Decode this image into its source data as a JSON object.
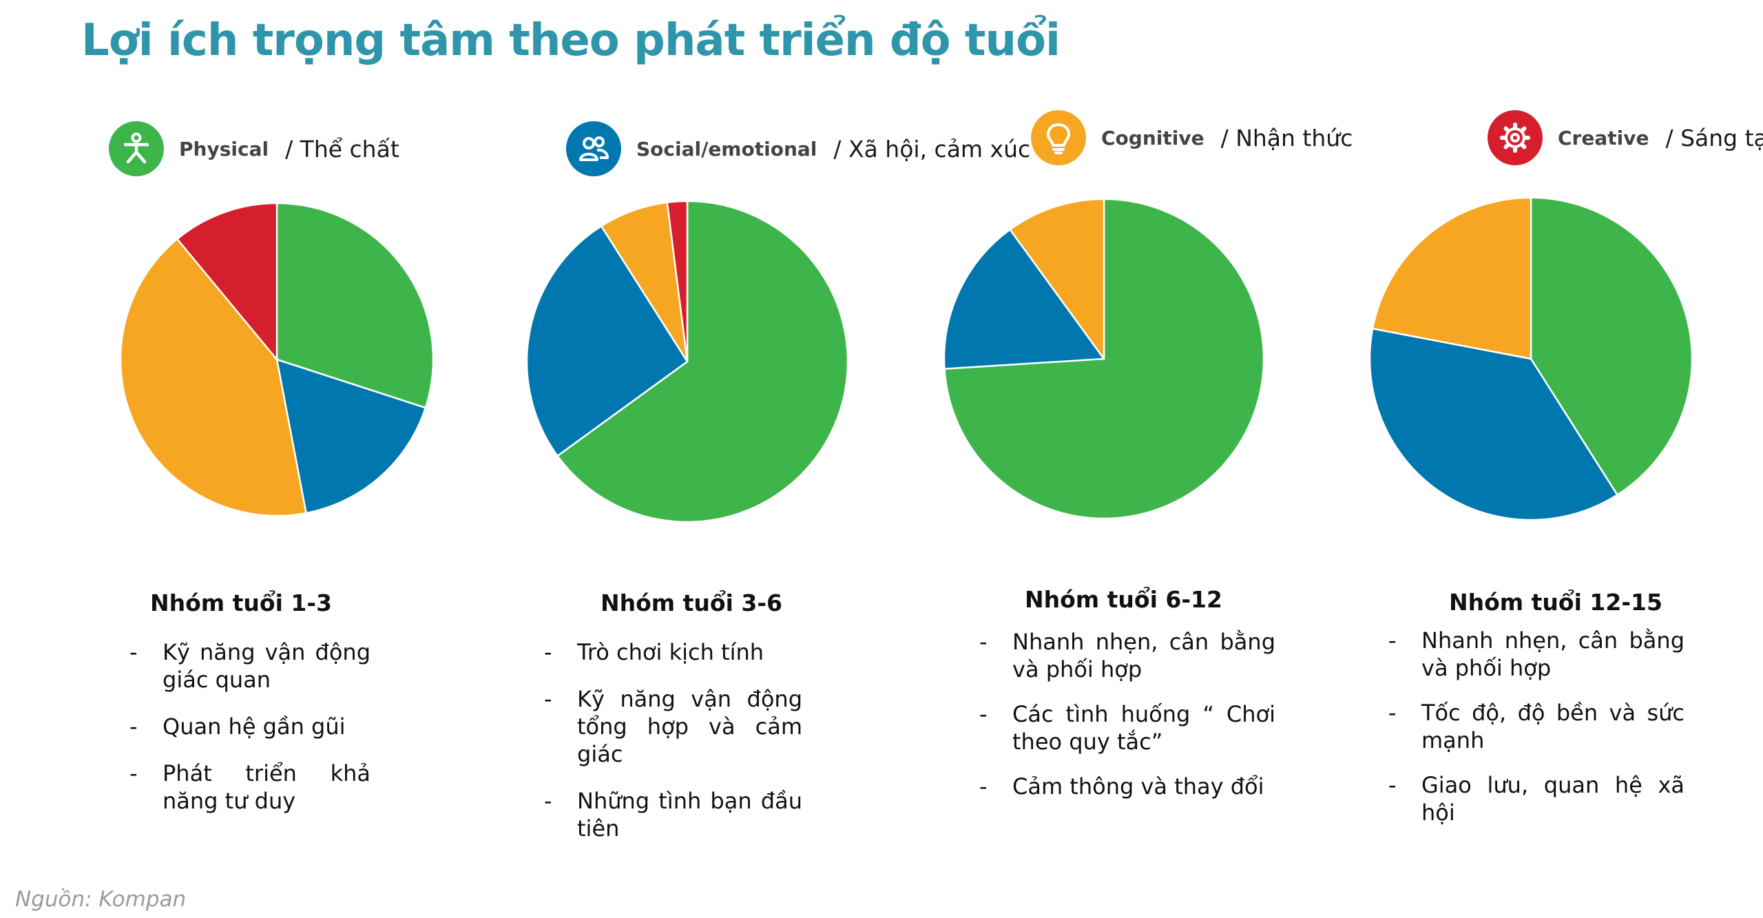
{
  "title": "Lợi ích trọng tâm theo phát triển độ tuổi",
  "colors": {
    "physical": "#3db54a",
    "social": "#0077ae",
    "cognitive": "#f6a621",
    "creative": "#d61f2c",
    "title": "#2f95aa"
  },
  "legend": [
    {
      "en": "Physical",
      "vi": "/ Thể chất",
      "icon": "person-icon",
      "color": "#3db54a"
    },
    {
      "en": "Social/emotional",
      "vi": "/ Xã hội, cảm xúc",
      "icon": "people-icon",
      "color": "#0077ae"
    },
    {
      "en": "Cognitive",
      "vi": "/ Nhận thức",
      "icon": "lightbulb-icon",
      "color": "#f6a621"
    },
    {
      "en": "Creative",
      "vi": "/ Sáng tạo",
      "icon": "gear-icon",
      "color": "#d61f2c"
    }
  ],
  "chart_data": [
    {
      "type": "pie",
      "title": "Nhóm tuổi 1-3",
      "slices": [
        {
          "category": "Physical",
          "value": 30,
          "color": "#3db54a"
        },
        {
          "category": "Social/emotional",
          "value": 17,
          "color": "#0077ae"
        },
        {
          "category": "Cognitive",
          "value": 42,
          "color": "#f6a621"
        },
        {
          "category": "Creative",
          "value": 11,
          "color": "#d61f2c"
        }
      ]
    },
    {
      "type": "pie",
      "title": "Nhóm tuổi 3-6",
      "slices": [
        {
          "category": "Physical",
          "value": 65,
          "color": "#3db54a"
        },
        {
          "category": "Social/emotional",
          "value": 26,
          "color": "#0077ae"
        },
        {
          "category": "Cognitive",
          "value": 7,
          "color": "#f6a621"
        },
        {
          "category": "Creative",
          "value": 2,
          "color": "#d61f2c"
        }
      ]
    },
    {
      "type": "pie",
      "title": "Nhóm tuổi 6-12",
      "slices": [
        {
          "category": "Physical",
          "value": 74,
          "color": "#3db54a"
        },
        {
          "category": "Social/emotional",
          "value": 16,
          "color": "#0077ae"
        },
        {
          "category": "Cognitive",
          "value": 10,
          "color": "#f6a621"
        }
      ]
    },
    {
      "type": "pie",
      "title": "Nhóm tuổi 12-15",
      "slices": [
        {
          "category": "Physical",
          "value": 41,
          "color": "#3db54a"
        },
        {
          "category": "Social/emotional",
          "value": 37,
          "color": "#0077ae"
        },
        {
          "category": "Cognitive",
          "value": 22,
          "color": "#f6a621"
        }
      ]
    }
  ],
  "groups": [
    {
      "title": "Nhóm tuổi 1-3",
      "items": [
        "Kỹ năng vận động giác quan",
        "Quan hệ gần gũi",
        "Phát triển khả năng tư duy"
      ]
    },
    {
      "title": "Nhóm tuổi 3-6",
      "items": [
        "Trò chơi kịch tính",
        "Kỹ năng vận động tổng hợp và cảm giác",
        "Những tình bạn đầu tiên"
      ]
    },
    {
      "title": "Nhóm tuổi 6-12",
      "items": [
        "Nhanh nhẹn, cân bằng và phối hợp",
        "Các tình huống “ Chơi theo quy tắc”",
        "Cảm thông và thay đổi"
      ]
    },
    {
      "title": "Nhóm tuổi 12-15",
      "items": [
        "Nhanh nhẹn, cân bằng và phối hợp",
        "Tốc độ, độ bền và sức mạnh",
        "Giao lưu, quan hệ xã hội"
      ]
    }
  ],
  "source": "Nguồn: Kompan"
}
